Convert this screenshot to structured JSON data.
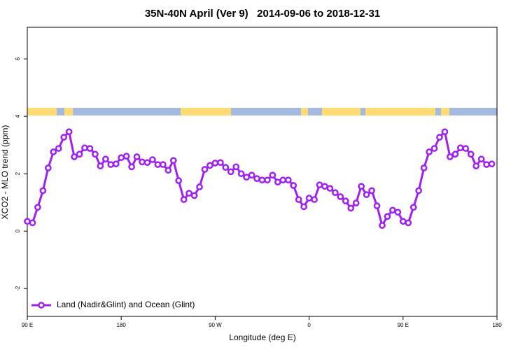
{
  "chart_data": {
    "type": "line",
    "title": "35N-40N April (Ver 9)   2014-09-06 to 2018-12-31",
    "x_label": "Longitude (deg E)",
    "y_label": "XCO2 - MLO trend (ppm)",
    "x": [
      90,
      95,
      100,
      105,
      110,
      115,
      120,
      125,
      130,
      135,
      140,
      145,
      150,
      155,
      160,
      165,
      170,
      175,
      180,
      185,
      190,
      195,
      200,
      205,
      210,
      215,
      220,
      225,
      230,
      235,
      240,
      245,
      250,
      255,
      260,
      265,
      270,
      275,
      280,
      285,
      290,
      295,
      300,
      305,
      310,
      315,
      320,
      325,
      330,
      335,
      340,
      345,
      350,
      355,
      360,
      365,
      370,
      375,
      380,
      385,
      390,
      395,
      400,
      405,
      410,
      415,
      420,
      425,
      430,
      435,
      440,
      445,
      450,
      455,
      460,
      465,
      470,
      475,
      480,
      485,
      490,
      495,
      500,
      505,
      510,
      515,
      520,
      525,
      530,
      535
    ],
    "series": [
      {
        "name": "Land (Nadir&Glint) and Ocean (Glint)",
        "color": "#a020f0",
        "values": [
          0.34,
          0.29,
          0.83,
          1.41,
          2.2,
          2.76,
          2.88,
          3.27,
          3.46,
          2.59,
          2.68,
          2.9,
          2.88,
          2.68,
          2.27,
          2.51,
          2.32,
          2.34,
          2.56,
          2.61,
          2.24,
          2.59,
          2.41,
          2.39,
          2.49,
          2.32,
          2.32,
          2.12,
          2.46,
          1.76,
          1.1,
          1.32,
          1.24,
          1.54,
          2.15,
          2.29,
          2.37,
          2.39,
          2.22,
          2.07,
          2.24,
          2.0,
          1.88,
          1.95,
          1.83,
          1.78,
          1.78,
          1.95,
          1.71,
          1.78,
          1.78,
          1.59,
          1.1,
          0.85,
          1.15,
          1.1,
          1.61,
          1.56,
          1.49,
          1.34,
          1.2,
          1.05,
          0.8,
          0.98,
          1.56,
          1.27,
          1.41,
          0.88,
          0.2,
          0.51,
          0.73,
          0.66,
          0.34,
          0.29,
          0.83,
          1.41,
          2.2,
          2.76,
          2.88,
          3.27,
          3.46,
          2.59,
          2.68,
          2.9,
          2.88,
          2.68,
          2.27,
          2.51,
          2.32,
          2.34
        ]
      }
    ],
    "xlim": [
      90,
      540
    ],
    "xticks": [
      {
        "value": 90,
        "label": "90 E"
      },
      180,
      {
        "value": 270,
        "label": "90 W"
      },
      {
        "value": 360,
        "label": "0"
      },
      {
        "value": 450,
        "label": "90 E"
      },
      {
        "value": 540,
        "label": "180"
      }
    ],
    "ylim": [
      -2.97,
      7.1
    ],
    "yticks": [
      -2,
      0,
      2,
      4,
      6
    ],
    "legend": "bottomleft"
  }
}
